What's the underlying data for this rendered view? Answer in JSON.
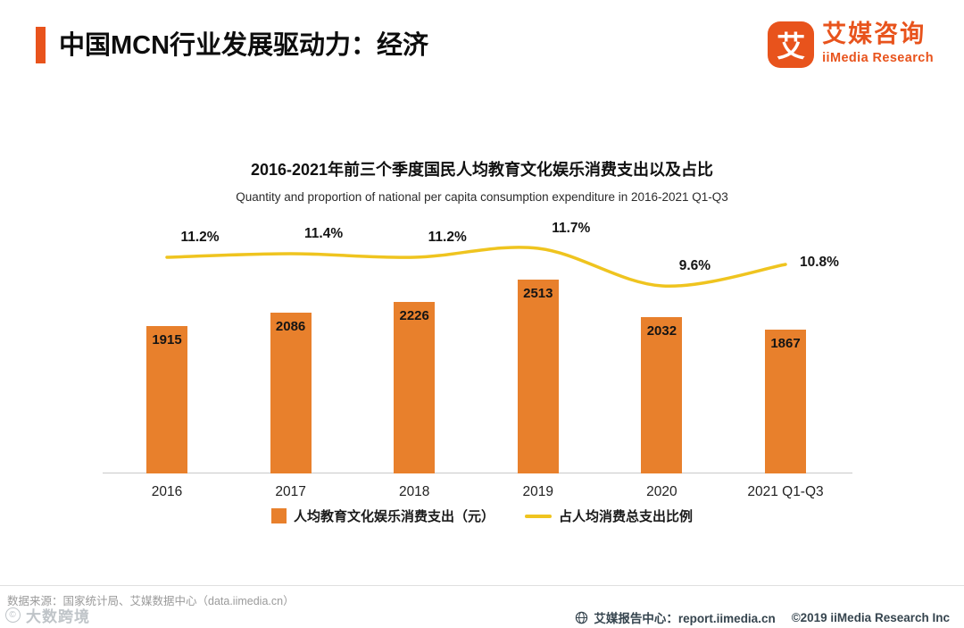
{
  "page": {
    "title": "中国MCN行业发展驱动力：经济",
    "accent_color": "#E8531C",
    "logo": {
      "symbol": "艾",
      "name_cn": "艾媒咨询",
      "name_en": "iiMedia Research"
    }
  },
  "chart_data": {
    "type": "bar",
    "subtype": "bar + line combo",
    "title": "2016-2021年前三个季度国民人均教育文化娱乐消费支出以及占比",
    "subtitle": "Quantity and proportion of national per capita consumption expenditure in 2016-2021 Q1-Q3",
    "categories": [
      "2016",
      "2017",
      "2018",
      "2019",
      "2020",
      "2021 Q1-Q3"
    ],
    "series": [
      {
        "name": "人均教育文化娱乐消费支出（元）",
        "type": "bar",
        "unit": "元",
        "color": "#E8802C",
        "values": [
          1915,
          2086,
          2226,
          2513,
          2032,
          1867
        ]
      },
      {
        "name": "占人均消费总支出比例",
        "type": "line",
        "unit": "%",
        "color": "#EFC41F",
        "values": [
          11.2,
          11.4,
          11.2,
          11.7,
          9.6,
          10.8
        ]
      }
    ],
    "ylim": [
      0,
      2800
    ],
    "grid": false,
    "legend_position": "bottom"
  },
  "footer": {
    "source": "数据来源：国家统计局、艾媒数据中心（data.iimedia.cn）",
    "report_center": "艾媒报告中心：report.iimedia.cn",
    "copyright": "©2019  iiMedia Research Inc"
  },
  "watermark": "大数跨境"
}
